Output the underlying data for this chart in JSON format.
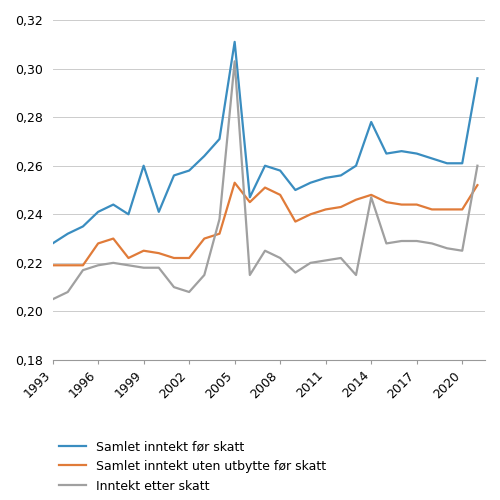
{
  "years": [
    1993,
    1994,
    1995,
    1996,
    1997,
    1998,
    1999,
    2000,
    2001,
    2002,
    2003,
    2004,
    2005,
    2006,
    2007,
    2008,
    2009,
    2010,
    2011,
    2012,
    2013,
    2014,
    2015,
    2016,
    2017,
    2018,
    2019,
    2020,
    2021
  ],
  "samlet_for_skatt": [
    0.228,
    0.232,
    0.235,
    0.241,
    0.244,
    0.24,
    0.26,
    0.241,
    0.256,
    0.258,
    0.264,
    0.271,
    0.311,
    0.247,
    0.26,
    0.258,
    0.25,
    0.253,
    0.255,
    0.256,
    0.26,
    0.278,
    0.265,
    0.266,
    0.265,
    0.263,
    0.261,
    0.261,
    0.296
  ],
  "samlet_uten_utbytte": [
    0.219,
    0.219,
    0.219,
    0.228,
    0.23,
    0.222,
    0.225,
    0.224,
    0.222,
    0.222,
    0.23,
    0.232,
    0.253,
    0.245,
    0.251,
    0.248,
    0.237,
    0.24,
    0.242,
    0.243,
    0.246,
    0.248,
    0.245,
    0.244,
    0.244,
    0.242,
    0.242,
    0.242,
    0.252
  ],
  "inntekt_etter_skatt": [
    0.205,
    0.208,
    0.217,
    0.219,
    0.22,
    0.219,
    0.218,
    0.218,
    0.21,
    0.208,
    0.215,
    0.238,
    0.303,
    0.215,
    0.225,
    0.222,
    0.216,
    0.22,
    0.221,
    0.222,
    0.215,
    0.247,
    0.228,
    0.229,
    0.229,
    0.228,
    0.226,
    0.225,
    0.26
  ],
  "color_blue": "#3a8dc0",
  "color_orange": "#e07b39",
  "color_gray": "#a0a0a0",
  "legend_labels": [
    "Samlet inntekt før skatt",
    "Samlet inntekt uten utbytte før skatt",
    "Inntekt etter skatt"
  ],
  "ylim": [
    0.18,
    0.32
  ],
  "yticks": [
    0.18,
    0.2,
    0.22,
    0.24,
    0.26,
    0.28,
    0.3,
    0.32
  ],
  "xticks": [
    1993,
    1996,
    1999,
    2002,
    2005,
    2008,
    2011,
    2014,
    2017,
    2020
  ],
  "linewidth": 1.6,
  "figwidth": 5.0,
  "figheight": 5.0
}
